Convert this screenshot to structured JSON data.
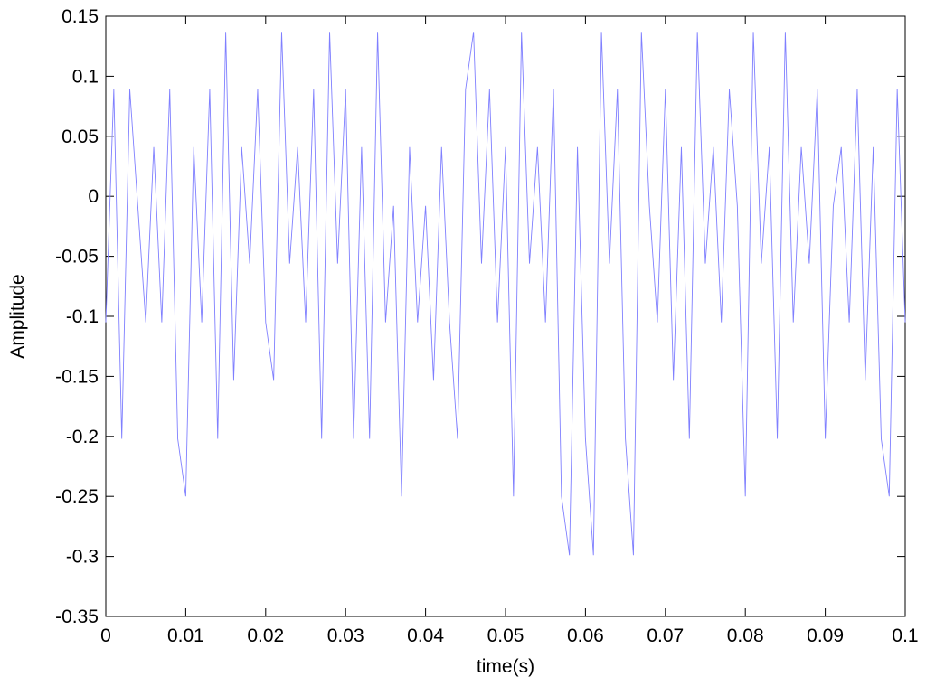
{
  "chart_data": {
    "type": "line",
    "xlabel": "time(s)",
    "ylabel": "Amplitude",
    "x": [
      0,
      0.001,
      0.002,
      0.003,
      0.004,
      0.005,
      0.006,
      0.007,
      0.008,
      0.009,
      0.01,
      0.011,
      0.012,
      0.013,
      0.014,
      0.015,
      0.016,
      0.017,
      0.018,
      0.019,
      0.02,
      0.021,
      0.022,
      0.023,
      0.024,
      0.025,
      0.026,
      0.027,
      0.028,
      0.029,
      0.03,
      0.031,
      0.032,
      0.033,
      0.034,
      0.035,
      0.036,
      0.037,
      0.038,
      0.039,
      0.04,
      0.041,
      0.042,
      0.043,
      0.044,
      0.045,
      0.046,
      0.047,
      0.048,
      0.049,
      0.05,
      0.051,
      0.052,
      0.053,
      0.054,
      0.055,
      0.056,
      0.057,
      0.058,
      0.059,
      0.06,
      0.061,
      0.062,
      0.063,
      0.064,
      0.065,
      0.066,
      0.067,
      0.068,
      0.069,
      0.07,
      0.071,
      0.072,
      0.073,
      0.074,
      0.075,
      0.076,
      0.077,
      0.078,
      0.079,
      0.08,
      0.081,
      0.082,
      0.083,
      0.084,
      0.085,
      0.086,
      0.087,
      0.088,
      0.089,
      0.09,
      0.091,
      0.092,
      0.093,
      0.094,
      0.095,
      0.096,
      0.097,
      0.098,
      0.099,
      0.1
    ],
    "series": [
      {
        "color": "#7f7fff",
        "values": [
          -0.105,
          0.089,
          -0.202,
          0.089,
          -0.008,
          -0.105,
          0.041,
          -0.105,
          0.089,
          -0.202,
          -0.25,
          0.041,
          -0.105,
          0.089,
          -0.202,
          0.137,
          -0.153,
          0.041,
          -0.056,
          0.089,
          -0.105,
          -0.153,
          0.137,
          -0.056,
          0.041,
          -0.105,
          0.089,
          -0.202,
          0.137,
          -0.056,
          0.089,
          -0.202,
          0.041,
          -0.202,
          0.137,
          -0.105,
          -0.008,
          -0.25,
          0.041,
          -0.105,
          -0.008,
          -0.153,
          0.041,
          -0.105,
          -0.202,
          0.089,
          0.137,
          -0.056,
          0.089,
          -0.105,
          0.041,
          -0.25,
          0.137,
          -0.056,
          0.041,
          -0.105,
          0.089,
          -0.25,
          -0.299,
          0.041,
          -0.202,
          -0.299,
          0.137,
          -0.056,
          0.089,
          -0.202,
          -0.299,
          0.137,
          -0.008,
          -0.105,
          0.089,
          -0.153,
          0.041,
          -0.202,
          0.137,
          -0.056,
          0.041,
          -0.105,
          0.089,
          -0.008,
          -0.25,
          0.137,
          -0.056,
          0.041,
          -0.202,
          0.137,
          -0.105,
          0.041,
          -0.056,
          0.089,
          -0.202,
          -0.008,
          0.041,
          -0.105,
          0.089,
          -0.153,
          0.041,
          -0.202,
          -0.25,
          0.089,
          -0.105
        ]
      }
    ],
    "xlim": [
      0,
      0.1
    ],
    "xticks": [
      0,
      0.01,
      0.02,
      0.03,
      0.04,
      0.05,
      0.06,
      0.07,
      0.08,
      0.09,
      0.1
    ],
    "ylim": [
      -0.35,
      0.15
    ],
    "yticks": [
      -0.35,
      -0.3,
      -0.25,
      -0.2,
      -0.15,
      -0.1,
      -0.05,
      0,
      0.05,
      0.1,
      0.15
    ],
    "grid": false
  }
}
